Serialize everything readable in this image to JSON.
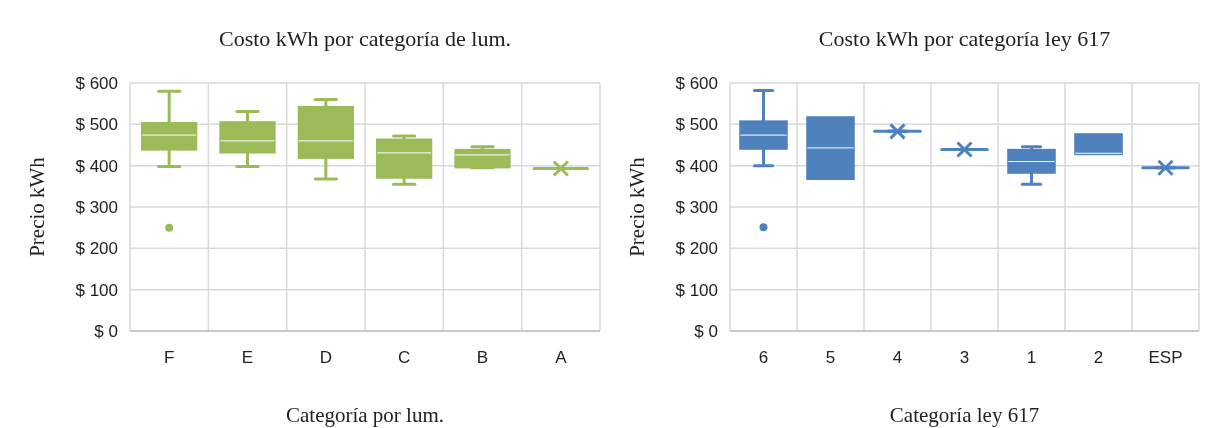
{
  "chart_data": [
    {
      "type": "box",
      "title": "Costo kWh por categoría de lum.",
      "xlabel": "Categoría por lum.",
      "ylabel": "Precio kWh",
      "categories": [
        "F",
        "E",
        "D",
        "C",
        "B",
        "A"
      ],
      "color": "#9bbb59",
      "grid": true,
      "boxes": [
        {
          "low": 398,
          "q1": 440,
          "median": 474,
          "q3": 502,
          "high": 580,
          "outliers": [
            250
          ]
        },
        {
          "low": 398,
          "q1": 433,
          "median": 460,
          "q3": 504,
          "high": 531
        },
        {
          "low": 368,
          "q1": 420,
          "median": 460,
          "q3": 541,
          "high": 560
        },
        {
          "low": 355,
          "q1": 372,
          "median": 431,
          "q3": 462,
          "high": 472
        },
        {
          "low": 395,
          "q1": 397,
          "median": 426,
          "q3": 437,
          "high": 446
        },
        {
          "low": 393,
          "q1": 393,
          "median": 393,
          "q3": 393,
          "high": 393,
          "mean": 393
        }
      ],
      "ylim": [
        0,
        600
      ],
      "yticks": [
        {
          "value": 0,
          "label": "$ 0"
        },
        {
          "value": 100,
          "label": "$ 100"
        },
        {
          "value": 200,
          "label": "$ 200"
        },
        {
          "value": 300,
          "label": "$ 300"
        },
        {
          "value": 400,
          "label": "$ 400"
        },
        {
          "value": 500,
          "label": "$ 500"
        },
        {
          "value": 600,
          "label": "$ 600"
        }
      ]
    },
    {
      "type": "box",
      "title": "Costo kWh por categoría ley 617",
      "xlabel": "Categoría ley 617",
      "ylabel": "Precio kWh",
      "categories": [
        "6",
        "5",
        "4",
        "3",
        "1",
        "2",
        "ESP"
      ],
      "color": "#4f81bd",
      "grid": true,
      "boxes": [
        {
          "low": 400,
          "q1": 442,
          "median": 474,
          "q3": 506,
          "high": 582,
          "outliers": [
            251
          ]
        },
        {
          "low": 369,
          "q1": 369,
          "median": 443,
          "q3": 516,
          "high": 516
        },
        {
          "low": 483,
          "q1": 483,
          "median": 483,
          "q3": 483,
          "high": 483,
          "mean": 483
        },
        {
          "low": 439,
          "q1": 439,
          "median": 439,
          "q3": 439,
          "high": 439,
          "mean": 439
        },
        {
          "low": 355,
          "q1": 384,
          "median": 410,
          "q3": 437,
          "high": 446
        },
        {
          "low": 429,
          "q1": 429,
          "median": 430,
          "q3": 475,
          "high": 475
        },
        {
          "low": 395,
          "q1": 395,
          "median": 395,
          "q3": 395,
          "high": 395,
          "mean": 395
        }
      ],
      "ylim": [
        0,
        600
      ],
      "yticks": [
        {
          "value": 0,
          "label": "$ 0"
        },
        {
          "value": 100,
          "label": "$ 100"
        },
        {
          "value": 200,
          "label": "$ 200"
        },
        {
          "value": 300,
          "label": "$ 300"
        },
        {
          "value": 400,
          "label": "$ 400"
        },
        {
          "value": 500,
          "label": "$ 500"
        },
        {
          "value": 600,
          "label": "$ 600"
        }
      ]
    }
  ]
}
